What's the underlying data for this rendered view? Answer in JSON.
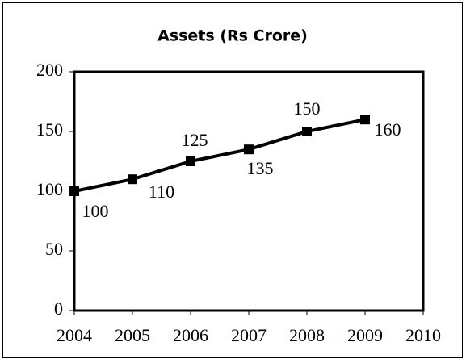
{
  "chart_data": {
    "type": "line",
    "title": "Assets (Rs Crore)",
    "x": [
      2004,
      2005,
      2006,
      2007,
      2008,
      2009
    ],
    "series": [
      {
        "name": "Assets",
        "color": "#000000",
        "values": [
          100,
          110,
          125,
          135,
          150,
          160
        ]
      }
    ],
    "xlim": [
      2004,
      2010
    ],
    "xticks": [
      2004,
      2005,
      2006,
      2007,
      2008,
      2009,
      2010
    ],
    "ylim": [
      0,
      200
    ],
    "yticks": [
      0,
      50,
      100,
      150,
      200
    ],
    "grid": false,
    "legend": false,
    "data_labels": true
  }
}
